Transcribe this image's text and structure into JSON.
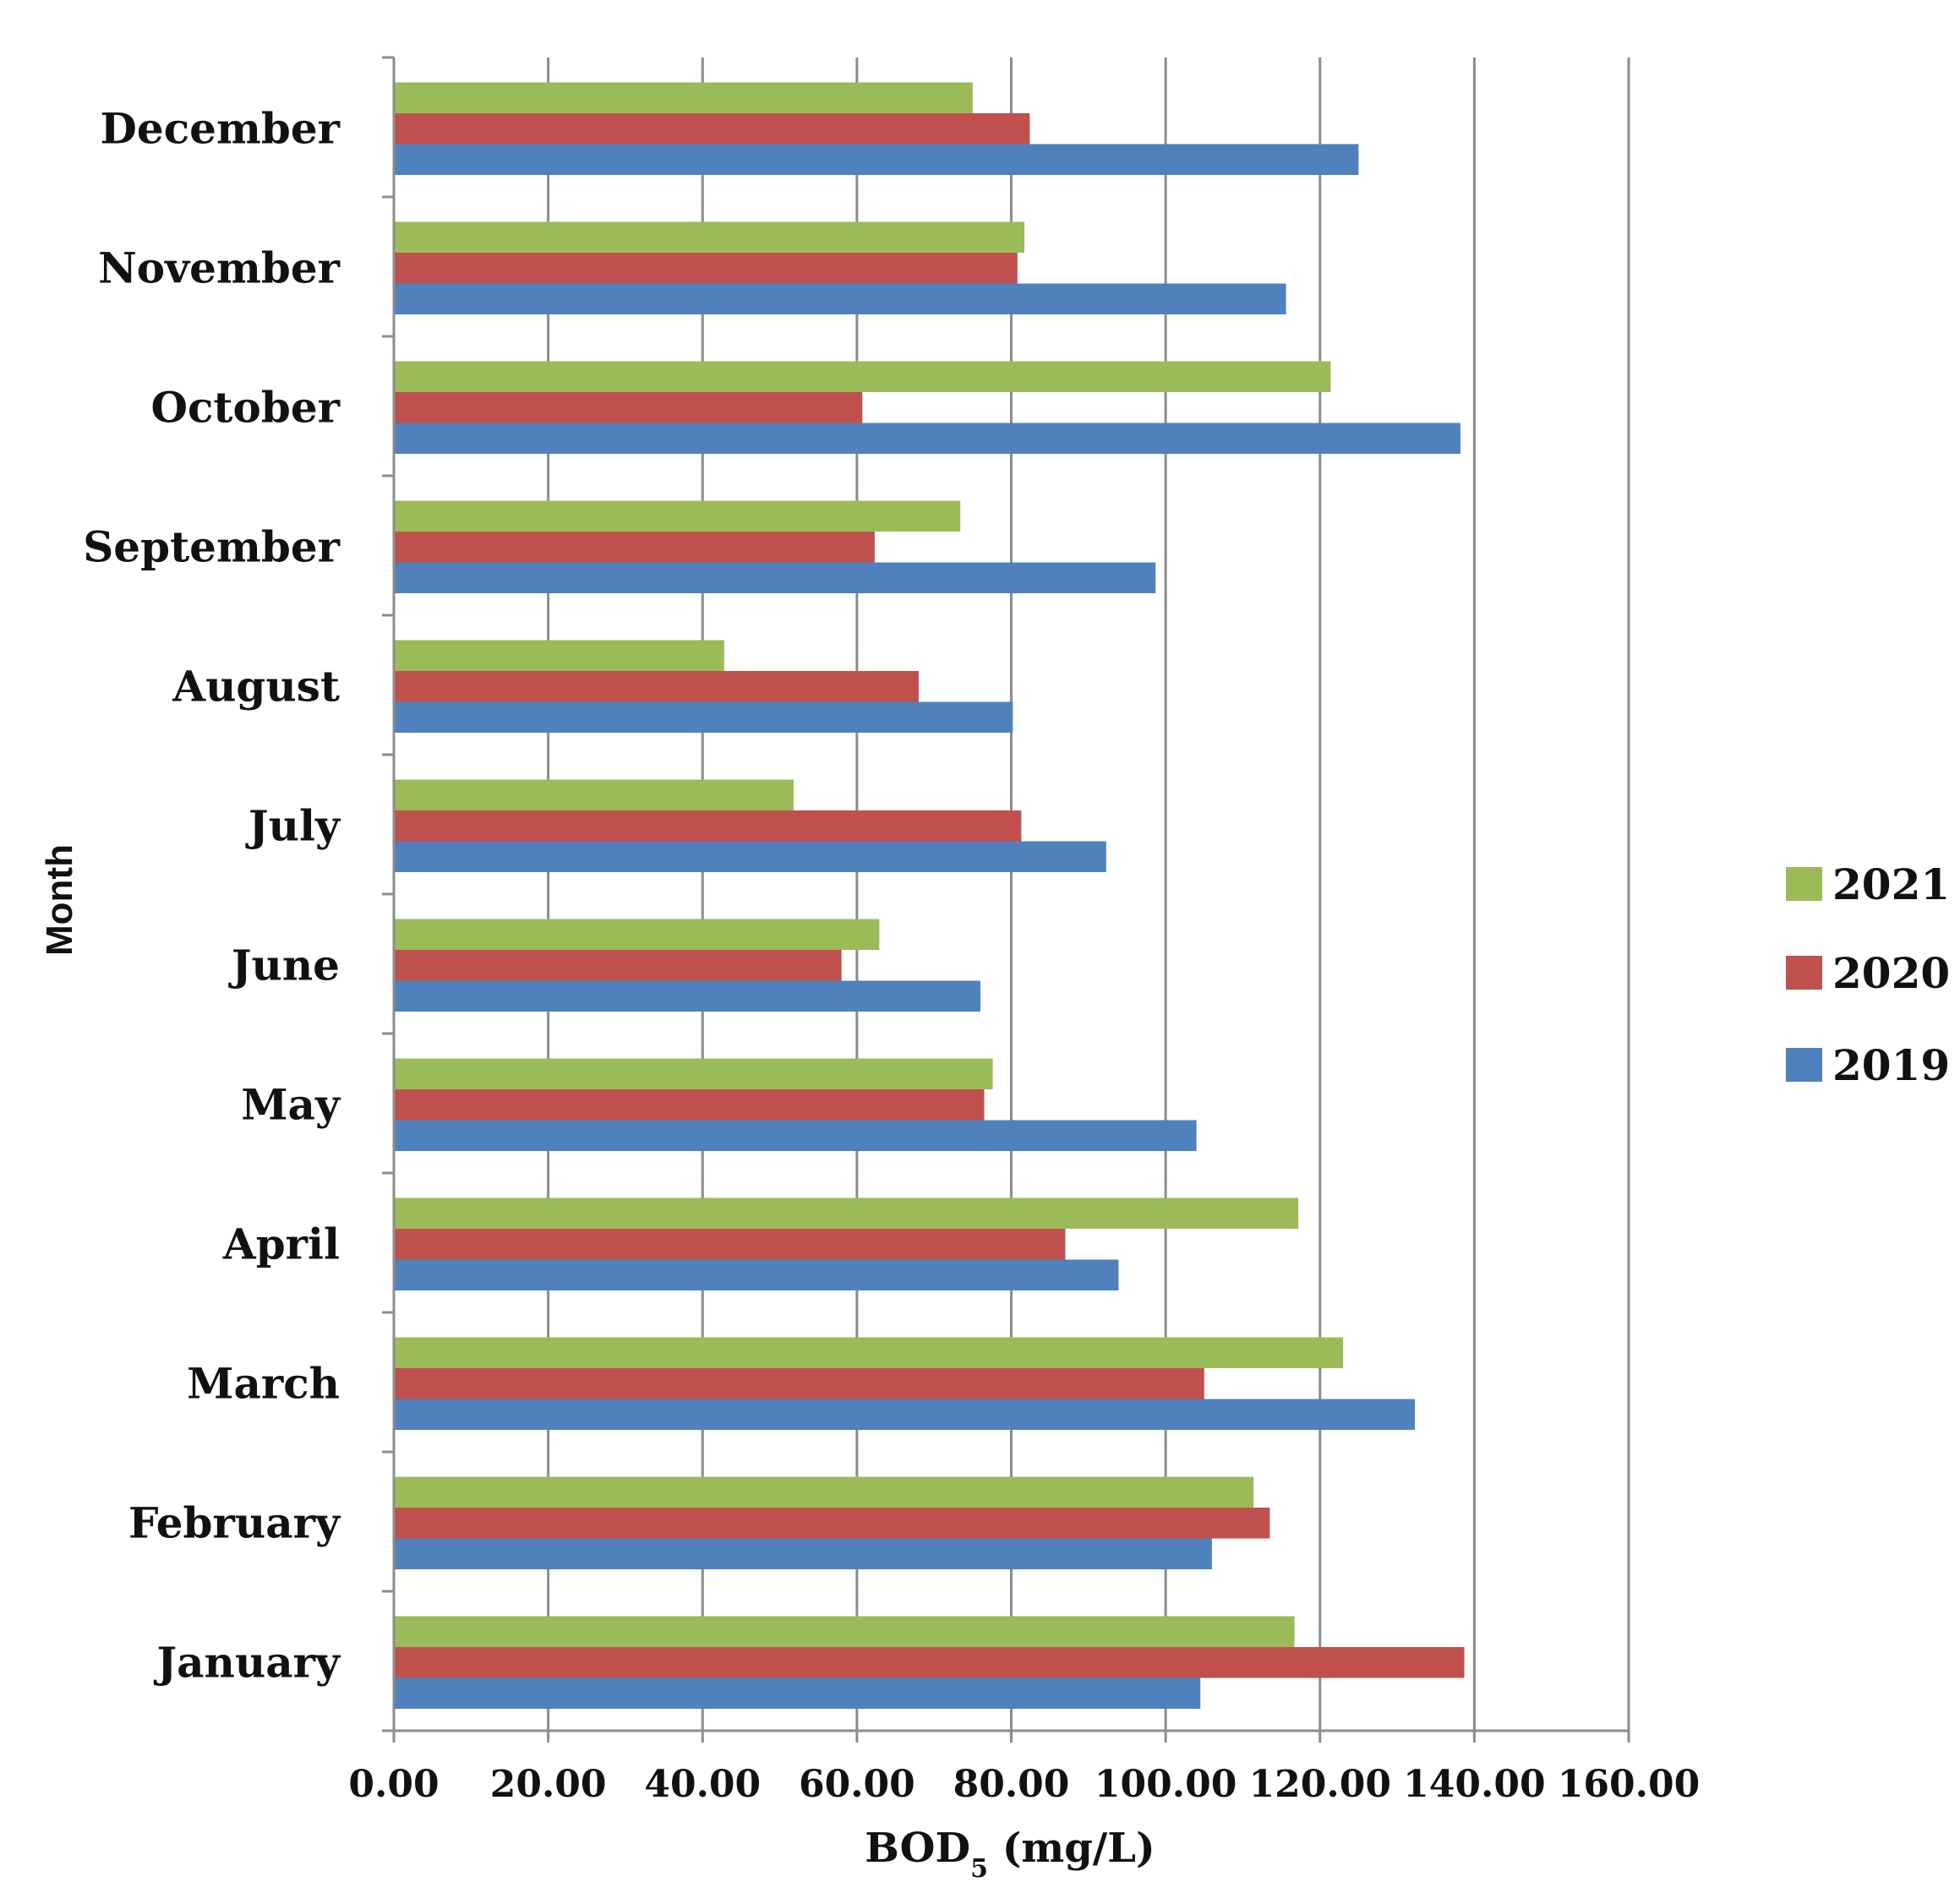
{
  "chart_data": {
    "type": "bar",
    "orientation": "horizontal",
    "categories": [
      "January",
      "February",
      "March",
      "April",
      "May",
      "June",
      "July",
      "August",
      "September",
      "October",
      "November",
      "December"
    ],
    "series": [
      {
        "name": "2019",
        "color": "#4F81BD",
        "values": [
          104.5,
          106.0,
          132.3,
          93.9,
          104.0,
          76.0,
          92.3,
          80.2,
          98.7,
          138.2,
          115.6,
          125.0
        ]
      },
      {
        "name": "2020",
        "color": "#C0504D",
        "values": [
          138.7,
          113.5,
          105.0,
          87.0,
          76.5,
          58.0,
          81.3,
          68.0,
          62.3,
          60.7,
          80.8,
          82.4
        ]
      },
      {
        "name": "2021",
        "color": "#9BBB59",
        "values": [
          116.7,
          111.4,
          123.0,
          117.2,
          77.6,
          62.9,
          51.8,
          42.8,
          73.4,
          121.4,
          81.7,
          75.0
        ]
      }
    ],
    "xlabel_main": "BOD",
    "xlabel_sub": "5",
    "xlabel_unit": " (mg/L)",
    "ylabel": "Month",
    "xlim": [
      0,
      160
    ],
    "xticks": [
      "0.00",
      "20.00",
      "40.00",
      "60.00",
      "80.00",
      "100.00",
      "120.00",
      "140.00",
      "160.00"
    ],
    "legend_order": [
      "2021",
      "2020",
      "2019"
    ],
    "legend_position": "right",
    "grid": true
  }
}
